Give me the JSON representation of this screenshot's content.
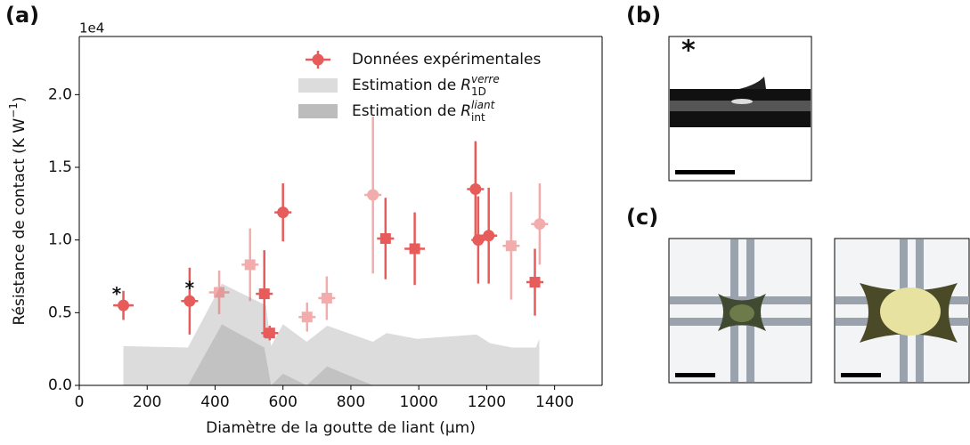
{
  "panel_labels": [
    "(a)",
    "(b)",
    "(c)"
  ],
  "photo_marker": "*",
  "chart_data": {
    "type": "errorbar",
    "offset_text": "1e4",
    "xlabel": "Diamètre de la goutte de liant (µm)",
    "ylabel": "Résistance de contact (K W",
    "ylabel_sup": "−1",
    "ylabel_end": ")",
    "xlim": [
      0,
      1540
    ],
    "ylim": [
      0,
      2.4
    ],
    "xticks": [
      0,
      200,
      400,
      600,
      800,
      1000,
      1200,
      1400
    ],
    "yticks": [
      {
        "value": 0,
        "label": "0.0"
      },
      {
        "value": 0.5,
        "label": "0.5"
      },
      {
        "value": 1,
        "label": "1.0"
      },
      {
        "value": 1.5,
        "label": "1.5"
      },
      {
        "value": 2,
        "label": "2.0"
      }
    ],
    "areas": [
      {
        "name": "Estimation de",
        "symbol": "R",
        "sub": "1D",
        "sup": "verre",
        "color": "#dcdcdc",
        "x": [
          130,
          320,
          420,
          550,
          565,
          600,
          670,
          730,
          865,
          905,
          995,
          1170,
          1210,
          1275,
          1345,
          1355
        ],
        "values": [
          0.27,
          0.26,
          0.7,
          0.55,
          0.27,
          0.42,
          0.3,
          0.41,
          0.3,
          0.36,
          0.32,
          0.35,
          0.29,
          0.26,
          0.26,
          0.32
        ]
      },
      {
        "name": "Estimation de",
        "symbol": "R",
        "sub": "int",
        "sup": "liant",
        "color": "#bcbcbc",
        "x": [
          320,
          420,
          545,
          565,
          600,
          670,
          730,
          865,
          1350
        ],
        "values": [
          0,
          0.42,
          0.26,
          0,
          0.08,
          0,
          0.13,
          0,
          0
        ]
      }
    ],
    "series": [
      {
        "name": "Données expérimentales",
        "color": "#e85b5b",
        "x": [
          130,
          325,
          600,
          1167,
          1175,
          1206,
          865,
          1356,
          412,
          503,
          671,
          729,
          1272,
          545,
          561,
          902,
          988,
          1342
        ],
        "values": [
          0.55,
          0.58,
          1.19,
          1.35,
          1.0,
          1.03,
          1.31,
          1.11,
          0.64,
          0.83,
          0.47,
          0.6,
          0.96,
          0.63,
          0.36,
          1.01,
          0.94,
          0.71
        ],
        "xerr": [
          30,
          25,
          25,
          25,
          20,
          25,
          25,
          25,
          30,
          25,
          25,
          25,
          25,
          25,
          25,
          25,
          30,
          25
        ],
        "yerr": [
          0.1,
          0.23,
          0.2,
          0.33,
          0.3,
          0.33,
          0.54,
          0.28,
          0.15,
          0.25,
          0.1,
          0.15,
          0.37,
          0.3,
          0.05,
          0.28,
          0.25,
          0.23
        ],
        "markers": [
          "o",
          "o",
          "o",
          "o",
          "o",
          "o",
          "o",
          "o",
          "s",
          "s",
          "s",
          "s",
          "s",
          "s",
          "s",
          "s",
          "s",
          "s"
        ],
        "alphas": [
          1,
          1,
          1,
          1,
          1,
          1,
          0.5,
          0.5,
          0.5,
          0.5,
          0.5,
          0.5,
          0.5,
          1,
          1,
          1,
          1,
          1
        ]
      }
    ],
    "annotations": [
      {
        "text": "*",
        "x": 110,
        "y": 0.62
      },
      {
        "text": "*",
        "x": 325,
        "y": 0.66
      }
    ]
  }
}
